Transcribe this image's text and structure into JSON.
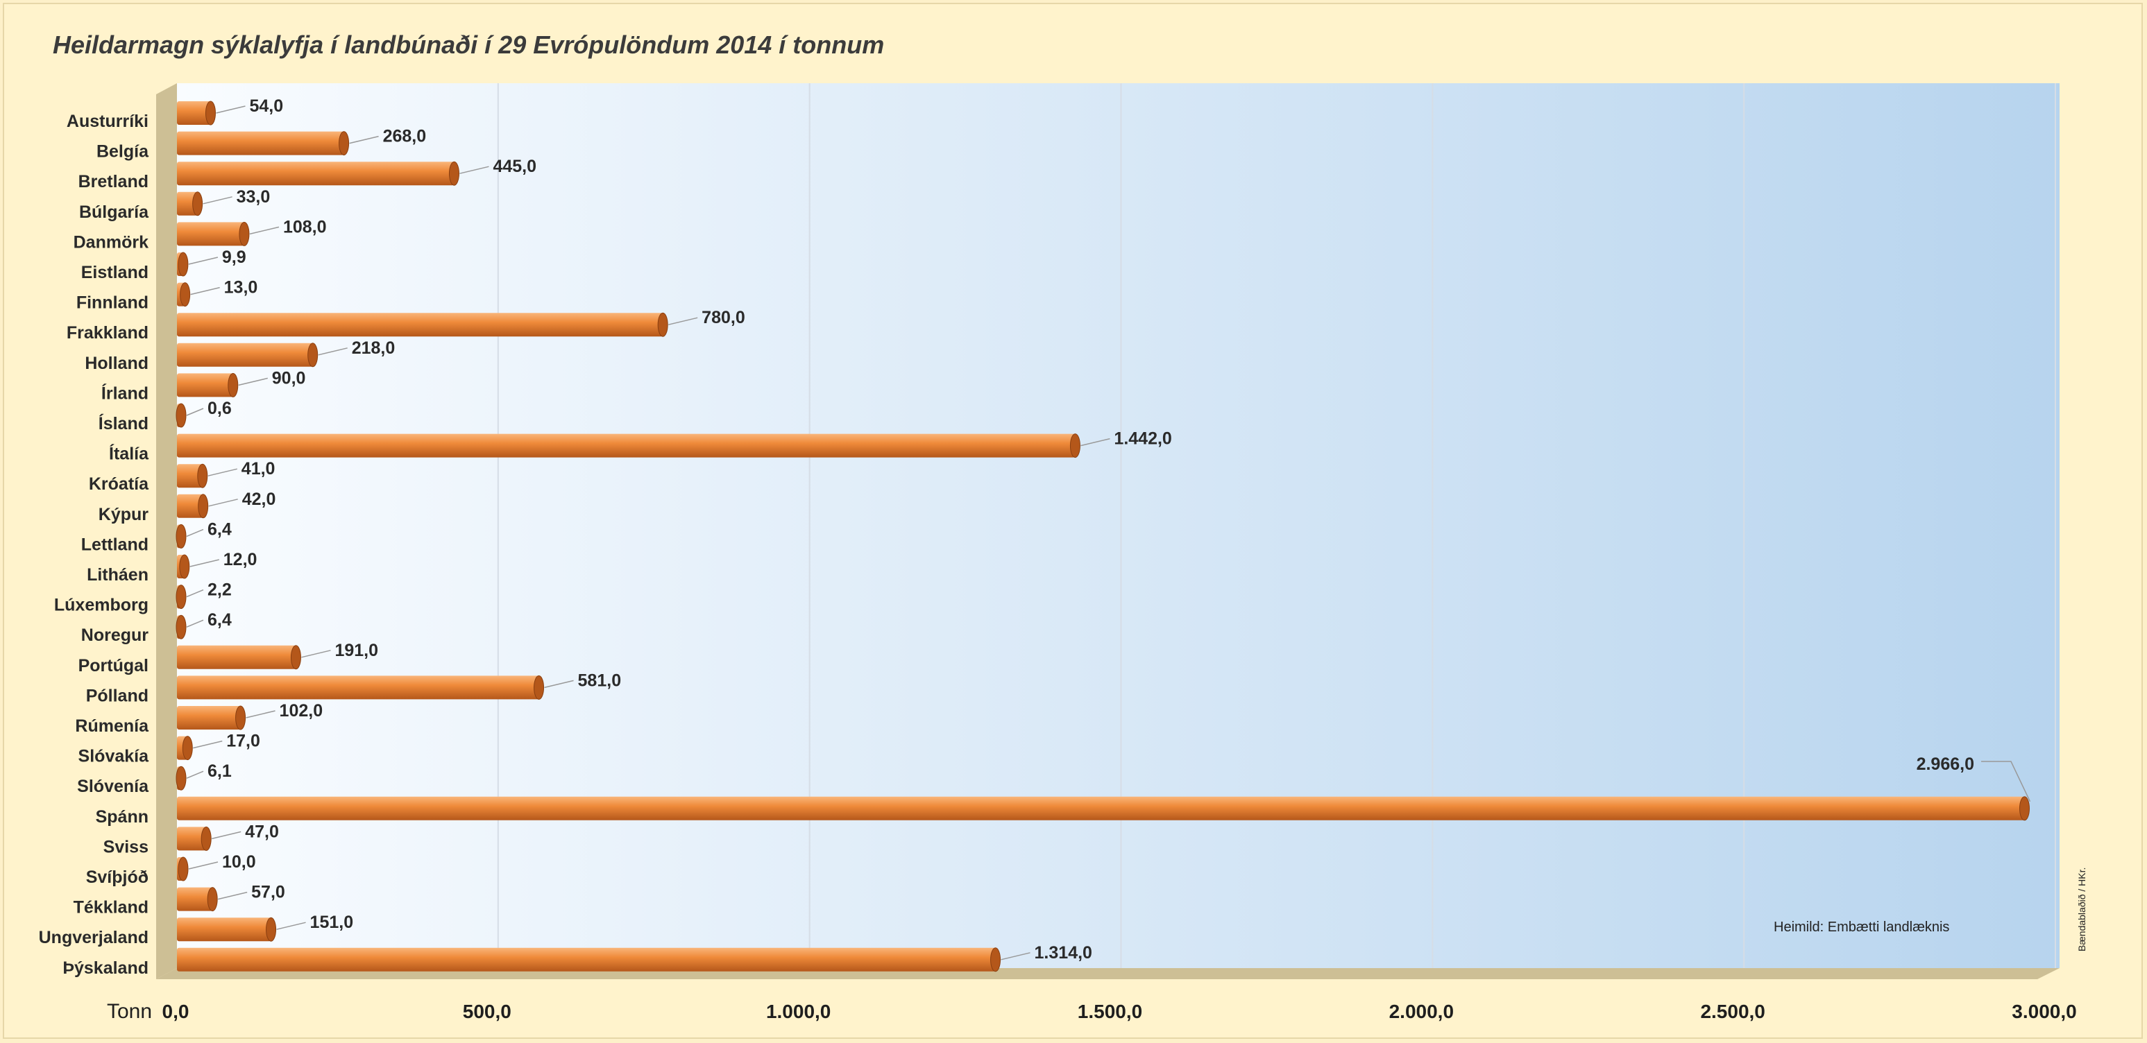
{
  "chart_data": {
    "type": "bar",
    "orientation": "horizontal",
    "title": "Heildarmagn sýklalyfja í landbúnaði í 29 Evrópulöndum 2014 í tonnum",
    "xlabel": "Tonn",
    "xlim": [
      0,
      3000
    ],
    "x_ticks": [
      "0,0",
      "500,0",
      "1.000,0",
      "1.500,0",
      "2.000,0",
      "2.500,0",
      "3.000,0"
    ],
    "x_tick_values": [
      0,
      500,
      1000,
      1500,
      2000,
      2500,
      3000
    ],
    "grid": true,
    "categories": [
      "Austurríki",
      "Belgía",
      "Bretland",
      "Búlgaría",
      "Danmörk",
      "Eistland",
      "Finnland",
      "Frakkland",
      "Holland",
      "Írland",
      "Ísland",
      "Ítalía",
      "Króatía",
      "Kýpur",
      "Lettland",
      "Litháen",
      "Lúxemborg",
      "Noregur",
      "Portúgal",
      "Pólland",
      "Rúmenía",
      "Slóvakía",
      "Slóvenía",
      "Spánn",
      "Sviss",
      "Svíþjóð",
      "Tékkland",
      "Ungverjaland",
      "Þýskaland"
    ],
    "values": [
      54.0,
      268.0,
      445.0,
      33.0,
      108.0,
      9.9,
      13.0,
      780.0,
      218.0,
      90.0,
      0.6,
      1442.0,
      41.0,
      42.0,
      6.4,
      12.0,
      2.2,
      6.4,
      191.0,
      581.0,
      102.0,
      17.0,
      6.1,
      2966.0,
      47.0,
      10.0,
      57.0,
      151.0,
      1314.0
    ],
    "value_labels": [
      "54,0",
      "268,0",
      "445,0",
      "33,0",
      "108,0",
      "9,9",
      "13,0",
      "780,0",
      "218,0",
      "90,0",
      "0,6",
      "1.442,0",
      "41,0",
      "42,0",
      "6,4",
      "12,0",
      "2,2",
      "6,4",
      "191,0",
      "581,0",
      "102,0",
      "17,0",
      "6,1",
      "2.966,0",
      "47,0",
      "10,0",
      "57,0",
      "151,0",
      "1.314,0"
    ],
    "source": "Heimild: Embætti landlæknis",
    "credit": "Bændablaðið / HKr.",
    "colors": {
      "bar": "#ef8a3a",
      "bar_light": "#f9b57a",
      "bar_dark": "#b4571a",
      "plot_left": "#f9fcff",
      "plot_right": "#b7d4ee",
      "floor": "#cdbf95"
    }
  }
}
